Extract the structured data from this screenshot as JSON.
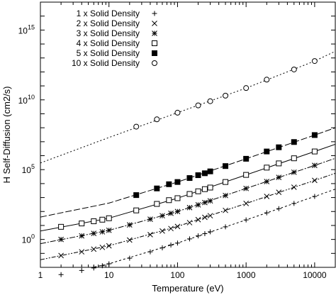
{
  "chart_data": {
    "type": "line",
    "xlabel": "Temperature (eV)",
    "ylabel": "H Self-Diffusion (cm2/s)",
    "xscale": "log",
    "yscale": "log",
    "xlim": [
      1,
      20000
    ],
    "ylim": [
      0.01,
      1e+17
    ],
    "x_ticks": [
      {
        "value": 1,
        "label": "1"
      },
      {
        "value": 10,
        "label": "10"
      },
      {
        "value": 100,
        "label": "100"
      },
      {
        "value": 1000,
        "label": "1000"
      },
      {
        "value": 10000,
        "label": "10000"
      }
    ],
    "y_ticks": [
      {
        "value": 1,
        "base": "10",
        "exp": "0"
      },
      {
        "value": 100000,
        "base": "10",
        "exp": "5"
      },
      {
        "value": 10000000000,
        "base": "10",
        "exp": "10"
      },
      {
        "value": 1000000000000000.0,
        "base": "10",
        "exp": "15"
      }
    ],
    "legend_position": "top-left",
    "series": [
      {
        "name": "1 x Solid Density",
        "marker": "plus",
        "dash": "3,3",
        "points": [
          [
            2,
            0.003
          ],
          [
            4,
            0.006
          ],
          [
            6,
            0.009
          ],
          [
            8,
            0.013
          ],
          [
            10,
            0.018
          ],
          [
            20,
            0.045
          ],
          [
            40,
            0.13
          ],
          [
            60,
            0.25
          ],
          [
            80,
            0.4
          ],
          [
            100,
            0.55
          ],
          [
            150,
            1.1
          ],
          [
            200,
            1.8
          ],
          [
            250,
            2.6
          ],
          [
            300,
            3.5
          ],
          [
            500,
            8
          ],
          [
            1000,
            25
          ],
          [
            2000,
            80
          ],
          [
            3000,
            160
          ],
          [
            5000,
            380
          ],
          [
            10000,
            1200
          ]
        ]
      },
      {
        "name": "2 x Solid Density",
        "marker": "x",
        "dash": "6,2,2,2,2,2",
        "points": [
          [
            2,
            0.07
          ],
          [
            4,
            0.13
          ],
          [
            6,
            0.2
          ],
          [
            8,
            0.27
          ],
          [
            10,
            0.35
          ],
          [
            20,
            0.9
          ],
          [
            40,
            2.2
          ],
          [
            60,
            4
          ],
          [
            80,
            6
          ],
          [
            100,
            8.5
          ],
          [
            150,
            16
          ],
          [
            200,
            26
          ],
          [
            250,
            38
          ],
          [
            300,
            50
          ],
          [
            500,
            120
          ],
          [
            1000,
            380
          ],
          [
            2000,
            1200
          ],
          [
            3000,
            2400
          ],
          [
            5000,
            5500
          ],
          [
            10000,
            17000
          ]
        ]
      },
      {
        "name": "3 x Solid Density",
        "marker": "star",
        "dash": "8,2,2,2",
        "points": [
          [
            2,
            1
          ],
          [
            4,
            1.8
          ],
          [
            6,
            2.7
          ],
          [
            8,
            3.5
          ],
          [
            10,
            4.5
          ],
          [
            20,
            11
          ],
          [
            40,
            28
          ],
          [
            60,
            50
          ],
          [
            80,
            75
          ],
          [
            100,
            100
          ],
          [
            150,
            190
          ],
          [
            200,
            300
          ],
          [
            250,
            440
          ],
          [
            300,
            580
          ],
          [
            500,
            1400
          ],
          [
            1000,
            4500
          ],
          [
            2000,
            14000
          ],
          [
            3000,
            28000
          ],
          [
            5000,
            65000
          ],
          [
            10000,
            200000
          ]
        ]
      },
      {
        "name": "4 x Solid Density",
        "marker": "square-open",
        "dash": "",
        "points": [
          [
            2,
            8
          ],
          [
            4,
            14
          ],
          [
            6,
            20
          ],
          [
            8,
            26
          ],
          [
            10,
            33
          ],
          [
            25,
            120
          ],
          [
            50,
            350
          ],
          [
            75,
            650
          ],
          [
            100,
            900
          ],
          [
            150,
            1800
          ],
          [
            200,
            2800
          ],
          [
            250,
            4000
          ],
          [
            300,
            5200
          ],
          [
            500,
            13000
          ],
          [
            1000,
            42000
          ],
          [
            2000,
            140000
          ],
          [
            3000,
            280000
          ],
          [
            5000,
            650000
          ],
          [
            10000,
            2000000
          ]
        ]
      },
      {
        "name": "5 x Solid Density",
        "marker": "square-filled",
        "dash": "9,3",
        "points": [
          [
            25,
            1500
          ],
          [
            50,
            4500
          ],
          [
            75,
            9000
          ],
          [
            100,
            13000
          ],
          [
            150,
            25000
          ],
          [
            200,
            40000
          ],
          [
            250,
            55000
          ],
          [
            300,
            75000
          ],
          [
            500,
            180000
          ],
          [
            1000,
            600000
          ],
          [
            2000,
            2000000
          ],
          [
            3000,
            4000000
          ],
          [
            5000,
            9500000
          ],
          [
            10000,
            30000000
          ]
        ]
      },
      {
        "name": "10 x Solid Density",
        "marker": "circle-open",
        "dash": "2,3",
        "points": [
          [
            25,
            120000000
          ],
          [
            50,
            400000000
          ],
          [
            100,
            1200000000
          ],
          [
            200,
            4000000000
          ],
          [
            300,
            8000000000
          ],
          [
            500,
            20000000000
          ],
          [
            1000,
            70000000000
          ],
          [
            2000,
            280000000000
          ],
          [
            5000,
            1500000000000
          ],
          [
            10000,
            6000000000000
          ]
        ]
      }
    ],
    "curves": [
      {
        "series": "1 x Solid Density",
        "dash": "3,3",
        "points": [
          [
            1,
            0.0015
          ],
          [
            10,
            0.018
          ],
          [
            100,
            0.55
          ],
          [
            1000,
            25
          ],
          [
            10000,
            1200
          ],
          [
            20000,
            4000
          ]
        ]
      },
      {
        "series": "2 x Solid Density",
        "dash": "6,2,2,2,2,2",
        "points": [
          [
            1,
            0.035
          ],
          [
            10,
            0.35
          ],
          [
            100,
            8.5
          ],
          [
            1000,
            380
          ],
          [
            10000,
            17000
          ],
          [
            20000,
            55000
          ]
        ]
      },
      {
        "series": "3 x Solid Density",
        "dash": "8,2,2,2",
        "points": [
          [
            1,
            0.5
          ],
          [
            10,
            4.5
          ],
          [
            100,
            100
          ],
          [
            1000,
            4500
          ],
          [
            10000,
            200000
          ],
          [
            20000,
            650000
          ]
        ]
      },
      {
        "series": "4 x Solid Density",
        "dash": "",
        "points": [
          [
            1,
            4
          ],
          [
            10,
            33
          ],
          [
            100,
            900
          ],
          [
            1000,
            42000
          ],
          [
            10000,
            2000000
          ],
          [
            20000,
            6500000
          ]
        ]
      },
      {
        "series": "5 x Solid Density",
        "dash": "9,3",
        "points": [
          [
            1,
            40
          ],
          [
            10,
            400
          ],
          [
            100,
            13000
          ],
          [
            1000,
            600000
          ],
          [
            10000,
            30000000
          ],
          [
            20000,
            100000000
          ]
        ]
      },
      {
        "series": "10 x Solid Density",
        "dash": "2,3",
        "points": [
          [
            1,
            300000
          ],
          [
            10,
            20000000
          ],
          [
            100,
            1200000000
          ],
          [
            1000,
            70000000000
          ],
          [
            10000,
            6000000000000
          ],
          [
            20000,
            30000000000000
          ]
        ]
      }
    ]
  }
}
